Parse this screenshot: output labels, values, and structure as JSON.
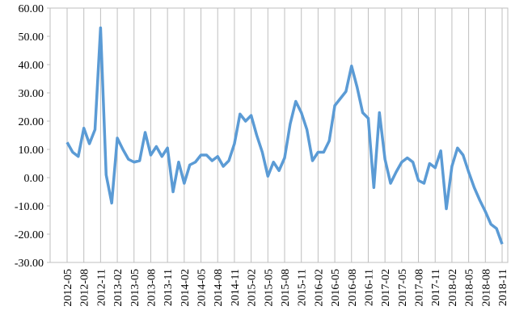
{
  "chart_data": {
    "type": "line",
    "categories": [
      "2012-05",
      null,
      null,
      "2012-08",
      null,
      null,
      "2012-11",
      null,
      null,
      "2013-02",
      null,
      null,
      "2013-05",
      null,
      null,
      "2013-08",
      null,
      null,
      "2013-11",
      null,
      null,
      "2014-02",
      null,
      null,
      "2014-05",
      null,
      null,
      "2014-08",
      null,
      null,
      "2014-11",
      null,
      null,
      "2015-02",
      null,
      null,
      "2015-05",
      null,
      null,
      "2015-08",
      null,
      null,
      "2015-11",
      null,
      null,
      "2016-02",
      null,
      null,
      "2016-05",
      null,
      null,
      "2016-08",
      null,
      null,
      "2016-11",
      null,
      null,
      "2017-02",
      null,
      null,
      "2017-05",
      null,
      null,
      "2017-08",
      null,
      null,
      "2017-11",
      null,
      null,
      "2018-02",
      null,
      null,
      "2018-05",
      null,
      null,
      "2018-08",
      null,
      null,
      "2018-11"
    ],
    "values": [
      12.5,
      9,
      7.5,
      17.5,
      12,
      17,
      53,
      1,
      -9,
      14,
      10,
      6.5,
      5.5,
      6,
      16,
      8,
      11,
      7.5,
      10.5,
      -5,
      5.5,
      -2,
      4.5,
      5.5,
      8,
      8,
      6,
      7.5,
      4,
      6,
      12,
      22.5,
      20,
      22,
      15,
      9,
      0.5,
      5.5,
      2.5,
      7,
      19,
      27,
      23,
      17,
      6,
      9,
      9,
      13,
      25.5,
      28,
      30.5,
      39.5,
      32,
      23,
      21,
      -3.5,
      23,
      6.5,
      -2,
      2,
      5.5,
      7,
      5.5,
      -1,
      -2,
      5,
      3.5,
      9.5,
      -11,
      4,
      10.5,
      8,
      2,
      -3.5,
      -8,
      -12,
      -16.5,
      -18,
      -23.5
    ],
    "color": "#5b9bd5",
    "ylim": [
      -30,
      60
    ],
    "yticks": [
      {
        "value": -30,
        "label": "-30.00"
      },
      {
        "value": -20,
        "label": "-20.00"
      },
      {
        "value": -10,
        "label": "-10.00"
      },
      {
        "value": 0,
        "label": "0.00"
      },
      {
        "value": 10,
        "label": "10.00"
      },
      {
        "value": 20,
        "label": "20.00"
      },
      {
        "value": 30,
        "label": "30.00"
      },
      {
        "value": 40,
        "label": "40.00"
      },
      {
        "value": 50,
        "label": "50.00"
      },
      {
        "value": 60,
        "label": "60.00"
      }
    ],
    "vertical_grid": true
  }
}
